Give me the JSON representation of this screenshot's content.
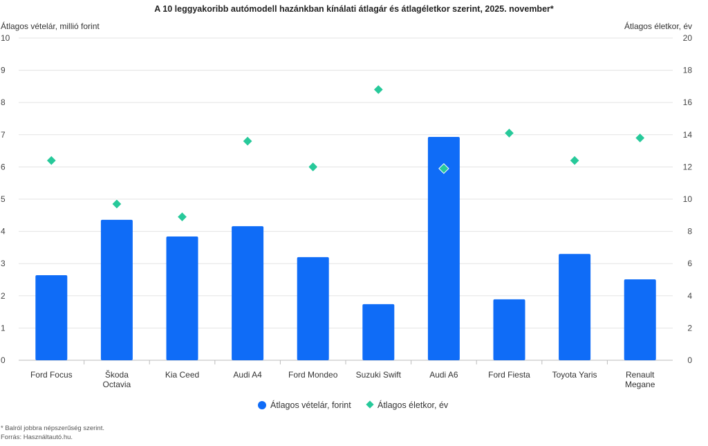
{
  "chart_data": {
    "type": "bar",
    "title": "A 10 leggyakoribb autómodell hazánkban kínálati átlagár és átlagéletkor szerint, 2025. november*",
    "ylabel_left": "Átlagos vételár, millió forint",
    "ylabel_right": "Átlagos életkor, év",
    "ylim_left": [
      0,
      10
    ],
    "ylim_right": [
      0,
      20
    ],
    "yticks_left": [
      0,
      1,
      2,
      3,
      4,
      5,
      6,
      7,
      8,
      9,
      10
    ],
    "yticks_right": [
      0,
      2,
      4,
      6,
      8,
      10,
      12,
      14,
      16,
      18,
      20
    ],
    "grid": true,
    "legend_position": "bottom",
    "categories": [
      "Ford Focus",
      "Škoda Octavia",
      "Kia Ceed",
      "Audi A4",
      "Ford Mondeo",
      "Suzuki Swift",
      "Audi A6",
      "Ford Fiesta",
      "Toyota Yaris",
      "Renault Megane"
    ],
    "series": [
      {
        "name": "Átlagos vételár, forint",
        "type": "bar",
        "axis": "left",
        "color": "#0f6cf7",
        "values": [
          2.64,
          4.36,
          3.84,
          4.16,
          3.2,
          1.74,
          6.93,
          1.89,
          3.3,
          2.51
        ]
      },
      {
        "name": "Átlagos életkor, év",
        "type": "scatter",
        "marker": "diamond",
        "axis": "right",
        "color": "#27c99a",
        "values": [
          12.4,
          9.7,
          8.9,
          13.6,
          12.0,
          16.8,
          11.9,
          14.1,
          12.4,
          13.8
        ]
      }
    ]
  },
  "footnotes": [
    "* Balról jobbra népszerűség szerint.",
    "Forrás: Használtautó.hu."
  ]
}
